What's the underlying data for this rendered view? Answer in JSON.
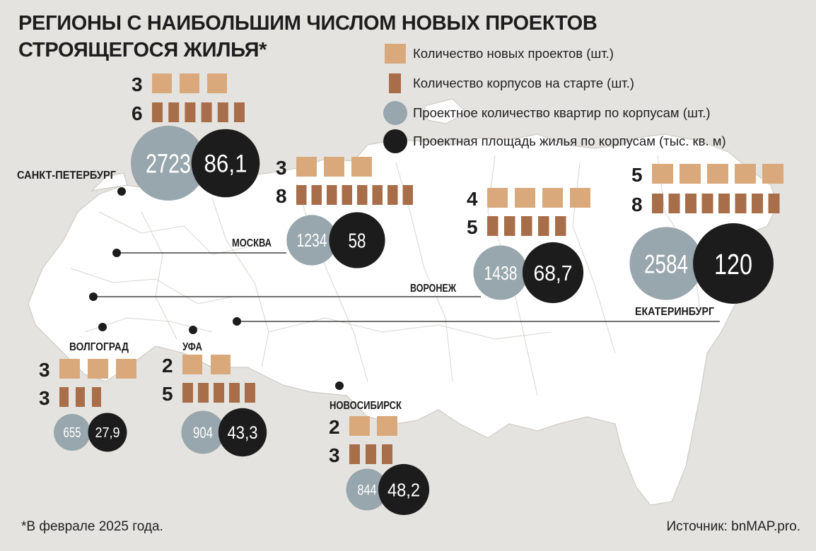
{
  "title_line1": "РЕГИОНЫ С НАИБОЛЬШИМ ЧИСЛОМ НОВЫХ ПРОЕКТОВ",
  "title_line2": "СТРОЯЩЕГОСЯ ЖИЛЬЯ*",
  "legend": {
    "projects": "Количество новых проектов (шт.)",
    "buildings": "Количество корпусов на старте (шт.)",
    "apartments": "Проектное количество квартир по корпусам (шт.)",
    "area": "Проектная площадь жилья по корпусам (тыс. кв. м)"
  },
  "footnote": "*В феврале 2025 года.",
  "source": "Источник: bnMAP.pro.",
  "colors": {
    "background": "#e5e3df",
    "map_fill": "#ffffff",
    "map_borders": "#d3d0cb",
    "projects": "#d9a97c",
    "buildings": "#a86e49",
    "apartments": "#98a6ad",
    "area": "#1d1c1c"
  },
  "chart_data": {
    "type": "table",
    "columns": [
      "Количество новых проектов (шт.)",
      "Количество корпусов на старте (шт.)",
      "Проектное количество квартир по корпусам (шт.)",
      "Проектная площадь жилья по корпусам (тыс. кв. м)"
    ],
    "regions": [
      {
        "name": "САНКТ-ПЕТЕРБУРГ",
        "projects": 3,
        "buildings": 6,
        "apartments": 2723,
        "area": 86.1,
        "apartments_label": "2723",
        "area_label": "86,1"
      },
      {
        "name": "МОСКВА",
        "projects": 3,
        "buildings": 8,
        "apartments": 1234,
        "area": 58,
        "apartments_label": "1234",
        "area_label": "58"
      },
      {
        "name": "ВОРОНЕЖ",
        "projects": 4,
        "buildings": 5,
        "apartments": 1438,
        "area": 68.7,
        "apartments_label": "1438",
        "area_label": "68,7"
      },
      {
        "name": "ЕКАТЕРИНБУРГ",
        "projects": 5,
        "buildings": 8,
        "apartments": 2584,
        "area": 120,
        "apartments_label": "2584",
        "area_label": "120"
      },
      {
        "name": "ВОЛГОГРАД",
        "projects": 3,
        "buildings": 3,
        "apartments": 655,
        "area": 27.9,
        "apartments_label": "655",
        "area_label": "27,9"
      },
      {
        "name": "УФА",
        "projects": 2,
        "buildings": 5,
        "apartments": 904,
        "area": 43.3,
        "apartments_label": "904",
        "area_label": "43,3"
      },
      {
        "name": "НОВОСИБИРСК",
        "projects": 2,
        "buildings": 3,
        "apartments": 844,
        "area": 48.2,
        "apartments_label": "844",
        "area_label": "48,2"
      }
    ]
  }
}
